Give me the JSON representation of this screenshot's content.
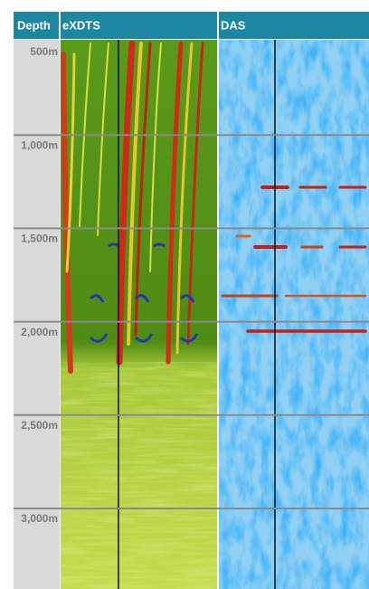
{
  "header": {
    "columns": [
      "Depth",
      "eXDTS",
      "DAS"
    ]
  },
  "depth_track": {
    "labels": [
      "500m",
      "1,000m",
      "1,500m",
      "2,000m",
      "2,500m",
      "3,000m"
    ]
  }
}
